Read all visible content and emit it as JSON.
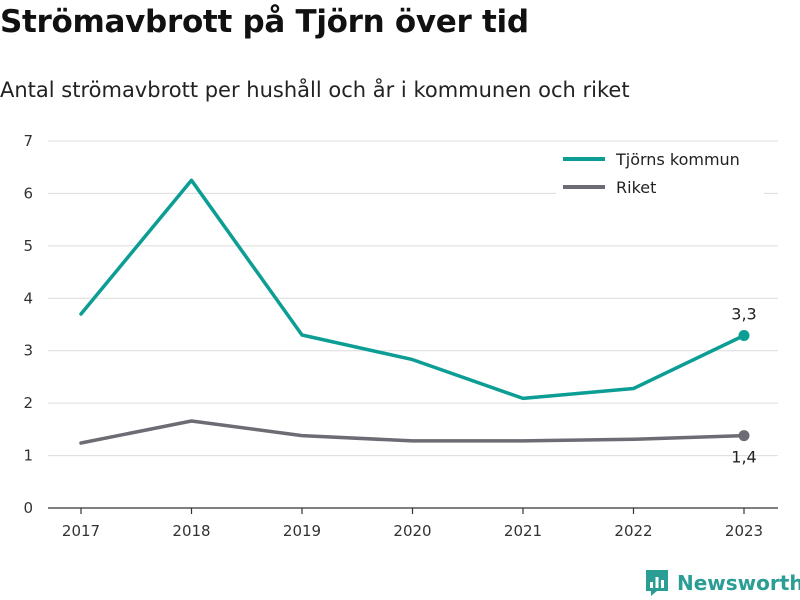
{
  "title": "Strömavbrott på Tjörn över tid",
  "subtitle": "Antal strömavbrott per hushåll och år i kommunen och riket",
  "brand": {
    "name": "Newsworthy",
    "icon": "newsworthy-logo-icon",
    "color": "#2a9d94"
  },
  "chart_data": {
    "type": "line",
    "x": [
      "2017",
      "2018",
      "2019",
      "2020",
      "2021",
      "2022",
      "2023"
    ],
    "ylim": [
      0,
      7
    ],
    "yticks": [
      "0",
      "1",
      "2",
      "3",
      "4",
      "5",
      "6",
      "7"
    ],
    "grid": true,
    "legend_position": "top-right",
    "series": [
      {
        "name": "Tjörns kommun",
        "color": "#0c9e94",
        "values": [
          3.7,
          6.25,
          3.3,
          2.83,
          2.09,
          2.28,
          3.29
        ],
        "end_label": "3,3",
        "end_label_position": "above"
      },
      {
        "name": "Riket",
        "color": "#6d6c74",
        "values": [
          1.24,
          1.66,
          1.38,
          1.28,
          1.28,
          1.31,
          1.38
        ],
        "end_label": "1,4",
        "end_label_position": "below"
      }
    ]
  }
}
